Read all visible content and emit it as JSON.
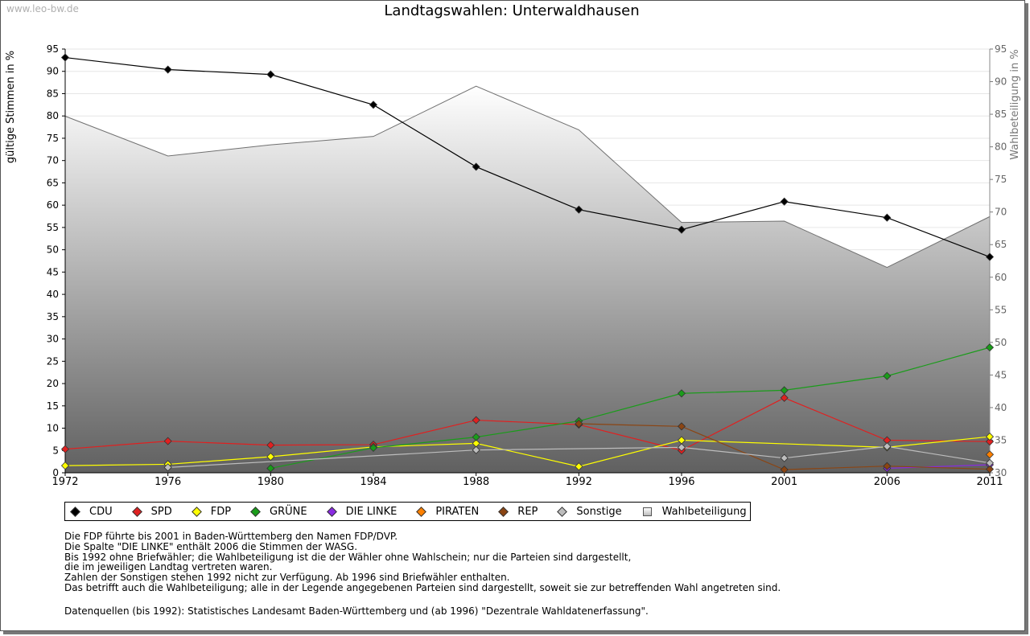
{
  "site": "www.leo-bw.de",
  "chart_data": {
    "type": "line",
    "title": "Landtagswahlen: Unterwaldhausen",
    "ylabel": "gültige Stimmen in %",
    "y2label": "Wahlbeteiligung in %",
    "ylim": [
      0,
      95
    ],
    "y2lim": [
      30,
      95
    ],
    "yticks": [
      "0",
      "5",
      "10",
      "15",
      "20",
      "25",
      "30",
      "35",
      "40",
      "45",
      "50",
      "55",
      "60",
      "65",
      "70",
      "75",
      "80",
      "85",
      "90",
      "95"
    ],
    "y2ticks": [
      "30",
      "35",
      "40",
      "45",
      "50",
      "55",
      "60",
      "65",
      "70",
      "75",
      "80",
      "85",
      "90",
      "95"
    ],
    "x": [
      "1972",
      "1976",
      "1980",
      "1984",
      "1988",
      "1992",
      "1996",
      "2001",
      "2006",
      "2011"
    ],
    "series": [
      {
        "name": "CDU",
        "color": "#000000",
        "values": [
          93.1,
          90.4,
          89.3,
          82.5,
          68.6,
          59.0,
          54.5,
          60.8,
          57.2,
          48.4
        ]
      },
      {
        "name": "SPD",
        "color": "#e02020",
        "values": [
          5.3,
          7.1,
          6.2,
          6.3,
          11.8,
          10.8,
          5.0,
          16.8,
          7.3,
          7.0
        ]
      },
      {
        "name": "FDP",
        "color": "#ffff00",
        "values": [
          1.6,
          1.9,
          3.6,
          5.8,
          6.6,
          1.4,
          7.3,
          null,
          5.7,
          8.1
        ]
      },
      {
        "name": "GRÜNE",
        "color": "#1a9c1a",
        "values": [
          null,
          null,
          1.0,
          5.6,
          8.0,
          11.6,
          17.8,
          18.5,
          21.7,
          28.1
        ]
      },
      {
        "name": "DIE LINKE",
        "color": "#8a2be2",
        "values": [
          null,
          null,
          null,
          null,
          null,
          null,
          null,
          null,
          1.0,
          1.8
        ]
      },
      {
        "name": "PIRATEN",
        "color": "#ff8000",
        "values": [
          null,
          null,
          null,
          null,
          null,
          null,
          null,
          null,
          null,
          4.1
        ]
      },
      {
        "name": "REP",
        "color": "#8b4513",
        "values": [
          null,
          null,
          null,
          null,
          null,
          11.0,
          10.4,
          0.7,
          1.5,
          0.8
        ]
      },
      {
        "name": "Sonstige",
        "color": "#bdbdbd",
        "values": [
          null,
          1.2,
          null,
          null,
          5.1,
          null,
          5.7,
          3.3,
          5.9,
          2.2
        ]
      }
    ],
    "turnout": {
      "name": "Wahlbeteiligung",
      "values": [
        84.7,
        78.6,
        80.3,
        81.6,
        89.3,
        82.6,
        68.4,
        68.6,
        61.5,
        69.3
      ]
    }
  },
  "legend": [
    {
      "label": "CDU",
      "color": "#000000"
    },
    {
      "label": "SPD",
      "color": "#e02020"
    },
    {
      "label": "FDP",
      "color": "#ffff00"
    },
    {
      "label": "GRÜNE",
      "color": "#1a9c1a"
    },
    {
      "label": "DIE LINKE",
      "color": "#8a2be2"
    },
    {
      "label": "PIRATEN",
      "color": "#ff8000"
    },
    {
      "label": "REP",
      "color": "#8b4513"
    },
    {
      "label": "Sonstige",
      "color": "#bdbdbd"
    },
    {
      "label": "Wahlbeteiligung",
      "color": "#cccccc"
    }
  ],
  "notes": [
    "Die FDP führte bis 2001 in Baden-Württemberg den Namen FDP/DVP.",
    "Die Spalte \"DIE LINKE\" enthält 2006 die Stimmen der WASG.",
    "Bis 1992 ohne Briefwähler; die Wahlbeteiligung ist die der Wähler ohne Wahlschein; nur die Parteien sind dargestellt,",
    "die im jeweiligen Landtag vertreten waren.",
    "Zahlen der Sonstigen stehen 1992 nicht zur Verfügung. Ab 1996 sind Briefwähler enthalten.",
    "Das betrifft auch die Wahlbeteiligung; alle in der Legende angegebenen Parteien sind dargestellt, soweit sie zur betreffenden Wahl angetreten sind."
  ],
  "source": "Datenquellen (bis 1992): Statistisches Landesamt Baden-Württemberg und (ab 1996) \"Dezentrale Wahldatenerfassung\"."
}
